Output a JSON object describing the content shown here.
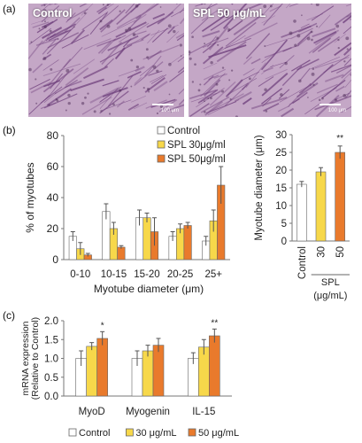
{
  "panel_labels": {
    "a": "(a)",
    "b": "(b)",
    "c": "(c)"
  },
  "micrographs": [
    {
      "label": "Control",
      "scale": "100 μm"
    },
    {
      "label": "SPL 50 μg/mL",
      "scale": "100 μm"
    }
  ],
  "colors": {
    "control": "#ffffff",
    "spl30": "#f7d84a",
    "spl50": "#e97a2c",
    "axis": "#777777",
    "error": "#555555",
    "stain_bg": "#c4a7c6",
    "stain_fiber": "#6e3f7c"
  },
  "chart_data": [
    {
      "id": "b_left",
      "type": "bar",
      "ylabel": "% of myotubes",
      "xlabel": "Myotube diameter (μm)",
      "ylim": [
        0,
        80
      ],
      "yticks": [
        "0",
        "20",
        "40",
        "60",
        "80"
      ],
      "categories": [
        "0-10",
        "10-15",
        "15-20",
        "20-25",
        "25+"
      ],
      "series": [
        {
          "name": "Control",
          "values": [
            15,
            31,
            27,
            15,
            12
          ],
          "errors": [
            3,
            5,
            5,
            3,
            3
          ]
        },
        {
          "name": "SPL 30μg/ml",
          "values": [
            7,
            20,
            27,
            20,
            25
          ],
          "errors": [
            4,
            4,
            3,
            3,
            7
          ]
        },
        {
          "name": "SPL 50μg/ml",
          "values": [
            3,
            8,
            18,
            22,
            48
          ],
          "errors": [
            1,
            1,
            9,
            2,
            12
          ]
        }
      ],
      "legend_position": "top-right",
      "annotations": []
    },
    {
      "id": "b_right",
      "type": "bar",
      "ylabel": "Myotube diameter (μm)",
      "xlabel": "SPL (μg/mL)",
      "ylim": [
        0,
        30
      ],
      "yticks": [
        "0",
        "5",
        "10",
        "15",
        "20",
        "25",
        "30"
      ],
      "categories": [
        "Control",
        "30",
        "50"
      ],
      "series": [
        {
          "values": [
            16,
            19.5,
            25
          ],
          "errors": [
            0.8,
            1.2,
            1.8
          ]
        }
      ],
      "annotations": [
        {
          "category": "50",
          "text": "**"
        }
      ]
    },
    {
      "id": "c",
      "type": "bar",
      "ylabel": "mRNA expression",
      "ylabel2": "(Relative to Control)",
      "ylim": [
        0,
        2.0
      ],
      "yticks": [
        "0.0",
        "0.5",
        "1.0",
        "1.5",
        "2.0"
      ],
      "categories": [
        "MyoD",
        "Myogenin",
        "IL-15"
      ],
      "series": [
        {
          "name": "Control",
          "values": [
            1.0,
            1.0,
            1.0
          ],
          "errors": [
            0.2,
            0.2,
            0.15
          ]
        },
        {
          "name": "30 μg/mL",
          "values": [
            1.32,
            1.2,
            1.3
          ],
          "errors": [
            0.1,
            0.15,
            0.2
          ]
        },
        {
          "name": "50 μg/mL",
          "values": [
            1.53,
            1.35,
            1.6
          ],
          "errors": [
            0.18,
            0.18,
            0.18
          ]
        }
      ],
      "legend_position": "bottom",
      "annotations": [
        {
          "category": "MyoD",
          "text": "*"
        },
        {
          "category": "IL-15",
          "text": "**"
        }
      ]
    }
  ]
}
